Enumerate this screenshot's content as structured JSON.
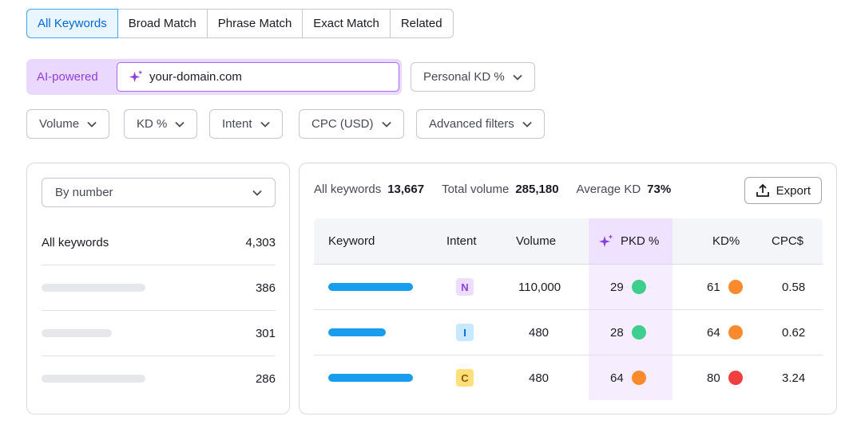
{
  "tabs": [
    {
      "label": "All Keywords",
      "active": true
    },
    {
      "label": "Broad Match",
      "active": false
    },
    {
      "label": "Phrase Match",
      "active": false
    },
    {
      "label": "Exact Match",
      "active": false
    },
    {
      "label": "Related",
      "active": false
    }
  ],
  "ai": {
    "label": "AI-powered",
    "domain_value": "your-domain.com",
    "spark_icon": "sparkle-icon"
  },
  "personal_kd": "Personal KD %",
  "filters": {
    "volume": "Volume",
    "kd": "KD %",
    "intent": "Intent",
    "cpc": "CPC (USD)",
    "advanced": "Advanced filters"
  },
  "left_panel": {
    "select_value": "By number",
    "rows": [
      {
        "label": "All keywords",
        "count": "4,303"
      },
      {
        "label": "",
        "count": "386"
      },
      {
        "label": "",
        "count": "301"
      },
      {
        "label": "",
        "count": "286"
      }
    ]
  },
  "summary": {
    "all_keywords_label": "All keywords",
    "all_keywords_value": "13,667",
    "total_volume_label": "Total volume",
    "total_volume_value": "285,180",
    "avg_kd_label": "Average KD",
    "avg_kd_value": "73%",
    "export_label": "Export"
  },
  "table": {
    "headers": {
      "keyword": "Keyword",
      "intent": "Intent",
      "volume": "Volume",
      "pkd": "PKD %",
      "kd": "KD%",
      "cpc": "CPC$"
    },
    "rows": [
      {
        "intent": "N",
        "intent_bg": "#eddeff",
        "intent_color": "#8d3ee0",
        "volume": "110,000",
        "pkd": "29",
        "pkd_color": "#3ecf8e",
        "kd": "61",
        "kd_color": "#fb8a2c",
        "cpc": "0.58"
      },
      {
        "intent": "I",
        "intent_bg": "#c7e8ff",
        "intent_color": "#006dca",
        "volume": "480",
        "pkd": "28",
        "pkd_color": "#3ecf8e",
        "kd": "64",
        "kd_color": "#fb8a2c",
        "cpc": "0.62"
      },
      {
        "intent": "C",
        "intent_bg": "#ffdf7a",
        "intent_color": "#8a5a00",
        "volume": "480",
        "pkd": "64",
        "pkd_color": "#fb8a2c",
        "kd": "80",
        "kd_color": "#f03f3f",
        "cpc": "3.24"
      }
    ]
  }
}
